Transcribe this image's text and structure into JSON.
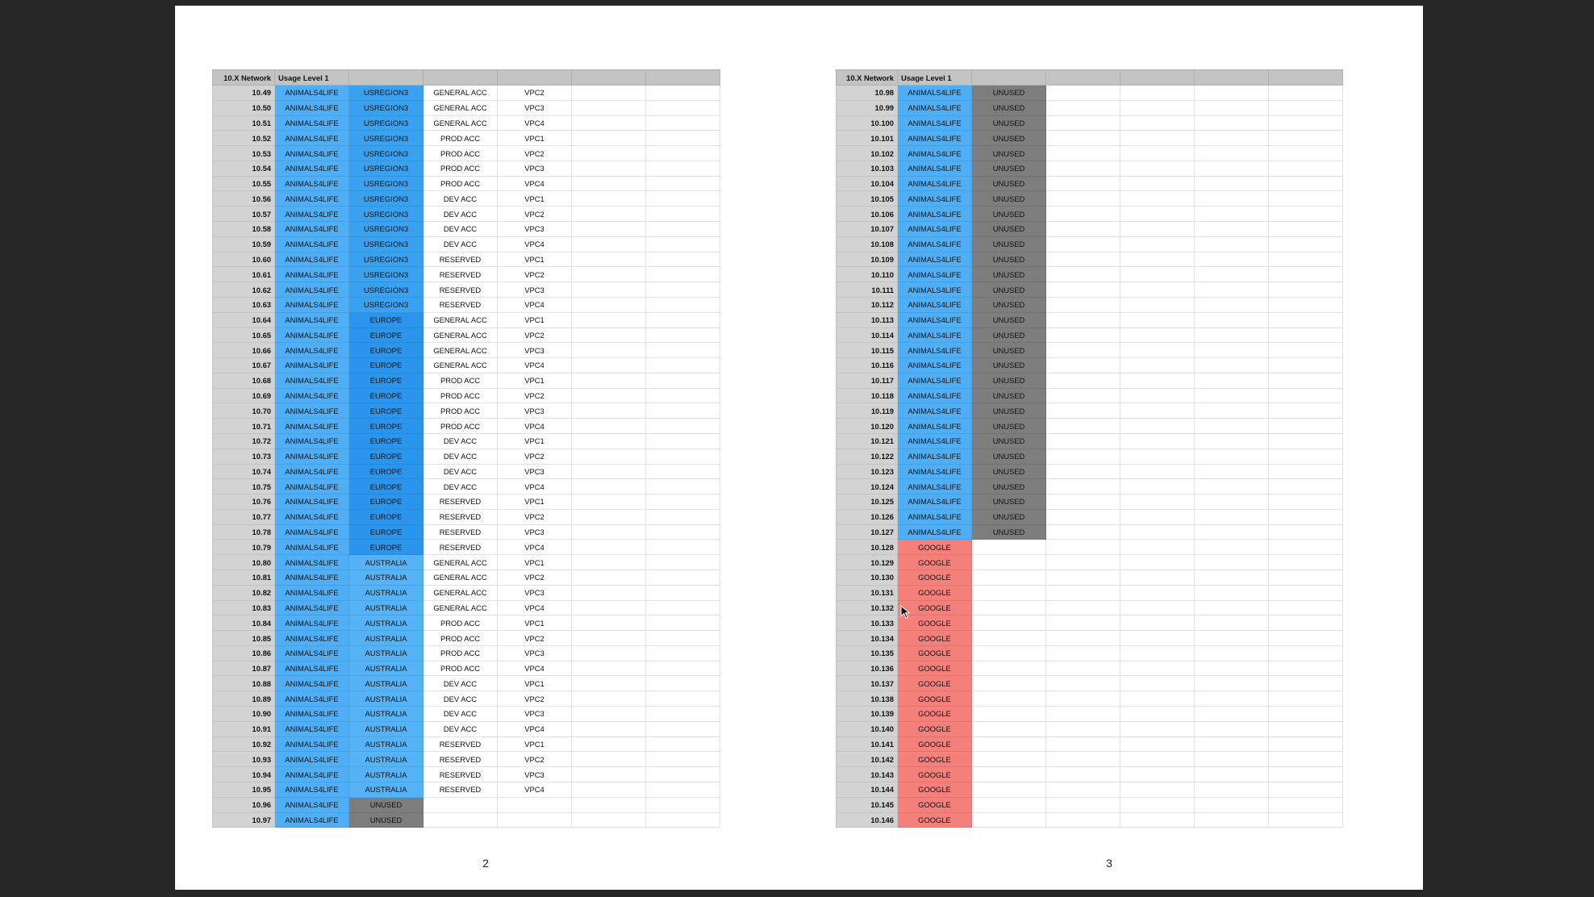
{
  "colors": {
    "animals4life": "#50aff4",
    "usregion3": "#3aa1ee",
    "europe": "#2b95ec",
    "australia": "#55b3f5",
    "unused": "#7d7d7d",
    "google": "#f3807b",
    "header": "#c3c3c3",
    "network_col": "#d2d2d2"
  },
  "headers": {
    "network": "10.X Network",
    "usage": "Usage Level 1"
  },
  "pages": [
    {
      "page_number": "2",
      "rows": [
        [
          "10.49",
          "ANIMALS4LIFE",
          "USREGION3",
          "GENERAL ACC",
          "VPC2"
        ],
        [
          "10.50",
          "ANIMALS4LIFE",
          "USREGION3",
          "GENERAL ACC",
          "VPC3"
        ],
        [
          "10.51",
          "ANIMALS4LIFE",
          "USREGION3",
          "GENERAL ACC",
          "VPC4"
        ],
        [
          "10.52",
          "ANIMALS4LIFE",
          "USREGION3",
          "PROD ACC",
          "VPC1"
        ],
        [
          "10.53",
          "ANIMALS4LIFE",
          "USREGION3",
          "PROD ACC",
          "VPC2"
        ],
        [
          "10.54",
          "ANIMALS4LIFE",
          "USREGION3",
          "PROD ACC",
          "VPC3"
        ],
        [
          "10.55",
          "ANIMALS4LIFE",
          "USREGION3",
          "PROD ACC",
          "VPC4"
        ],
        [
          "10.56",
          "ANIMALS4LIFE",
          "USREGION3",
          "DEV ACC",
          "VPC1"
        ],
        [
          "10.57",
          "ANIMALS4LIFE",
          "USREGION3",
          "DEV ACC",
          "VPC2"
        ],
        [
          "10.58",
          "ANIMALS4LIFE",
          "USREGION3",
          "DEV ACC",
          "VPC3"
        ],
        [
          "10.59",
          "ANIMALS4LIFE",
          "USREGION3",
          "DEV ACC",
          "VPC4"
        ],
        [
          "10.60",
          "ANIMALS4LIFE",
          "USREGION3",
          "RESERVED",
          "VPC1"
        ],
        [
          "10.61",
          "ANIMALS4LIFE",
          "USREGION3",
          "RESERVED",
          "VPC2"
        ],
        [
          "10.62",
          "ANIMALS4LIFE",
          "USREGION3",
          "RESERVED",
          "VPC3"
        ],
        [
          "10.63",
          "ANIMALS4LIFE",
          "USREGION3",
          "RESERVED",
          "VPC4"
        ],
        [
          "10.64",
          "ANIMALS4LIFE",
          "EUROPE",
          "GENERAL ACC",
          "VPC1"
        ],
        [
          "10.65",
          "ANIMALS4LIFE",
          "EUROPE",
          "GENERAL ACC",
          "VPC2"
        ],
        [
          "10.66",
          "ANIMALS4LIFE",
          "EUROPE",
          "GENERAL ACC",
          "VPC3"
        ],
        [
          "10.67",
          "ANIMALS4LIFE",
          "EUROPE",
          "GENERAL ACC",
          "VPC4"
        ],
        [
          "10.68",
          "ANIMALS4LIFE",
          "EUROPE",
          "PROD ACC",
          "VPC1"
        ],
        [
          "10.69",
          "ANIMALS4LIFE",
          "EUROPE",
          "PROD ACC",
          "VPC2"
        ],
        [
          "10.70",
          "ANIMALS4LIFE",
          "EUROPE",
          "PROD ACC",
          "VPC3"
        ],
        [
          "10.71",
          "ANIMALS4LIFE",
          "EUROPE",
          "PROD ACC",
          "VPC4"
        ],
        [
          "10.72",
          "ANIMALS4LIFE",
          "EUROPE",
          "DEV ACC",
          "VPC1"
        ],
        [
          "10.73",
          "ANIMALS4LIFE",
          "EUROPE",
          "DEV ACC",
          "VPC2"
        ],
        [
          "10.74",
          "ANIMALS4LIFE",
          "EUROPE",
          "DEV ACC",
          "VPC3"
        ],
        [
          "10.75",
          "ANIMALS4LIFE",
          "EUROPE",
          "DEV ACC",
          "VPC4"
        ],
        [
          "10.76",
          "ANIMALS4LIFE",
          "EUROPE",
          "RESERVED",
          "VPC1"
        ],
        [
          "10.77",
          "ANIMALS4LIFE",
          "EUROPE",
          "RESERVED",
          "VPC2"
        ],
        [
          "10.78",
          "ANIMALS4LIFE",
          "EUROPE",
          "RESERVED",
          "VPC3"
        ],
        [
          "10.79",
          "ANIMALS4LIFE",
          "EUROPE",
          "RESERVED",
          "VPC4"
        ],
        [
          "10.80",
          "ANIMALS4LIFE",
          "AUSTRALIA",
          "GENERAL ACC",
          "VPC1"
        ],
        [
          "10.81",
          "ANIMALS4LIFE",
          "AUSTRALIA",
          "GENERAL ACC",
          "VPC2"
        ],
        [
          "10.82",
          "ANIMALS4LIFE",
          "AUSTRALIA",
          "GENERAL ACC",
          "VPC3"
        ],
        [
          "10.83",
          "ANIMALS4LIFE",
          "AUSTRALIA",
          "GENERAL ACC",
          "VPC4"
        ],
        [
          "10.84",
          "ANIMALS4LIFE",
          "AUSTRALIA",
          "PROD ACC",
          "VPC1"
        ],
        [
          "10.85",
          "ANIMALS4LIFE",
          "AUSTRALIA",
          "PROD ACC",
          "VPC2"
        ],
        [
          "10.86",
          "ANIMALS4LIFE",
          "AUSTRALIA",
          "PROD ACC",
          "VPC3"
        ],
        [
          "10.87",
          "ANIMALS4LIFE",
          "AUSTRALIA",
          "PROD ACC",
          "VPC4"
        ],
        [
          "10.88",
          "ANIMALS4LIFE",
          "AUSTRALIA",
          "DEV ACC",
          "VPC1"
        ],
        [
          "10.89",
          "ANIMALS4LIFE",
          "AUSTRALIA",
          "DEV ACC",
          "VPC2"
        ],
        [
          "10.90",
          "ANIMALS4LIFE",
          "AUSTRALIA",
          "DEV ACC",
          "VPC3"
        ],
        [
          "10.91",
          "ANIMALS4LIFE",
          "AUSTRALIA",
          "DEV ACC",
          "VPC4"
        ],
        [
          "10.92",
          "ANIMALS4LIFE",
          "AUSTRALIA",
          "RESERVED",
          "VPC1"
        ],
        [
          "10.93",
          "ANIMALS4LIFE",
          "AUSTRALIA",
          "RESERVED",
          "VPC2"
        ],
        [
          "10.94",
          "ANIMALS4LIFE",
          "AUSTRALIA",
          "RESERVED",
          "VPC3"
        ],
        [
          "10.95",
          "ANIMALS4LIFE",
          "AUSTRALIA",
          "RESERVED",
          "VPC4"
        ],
        [
          "10.96",
          "ANIMALS4LIFE",
          "UNUSED",
          "",
          ""
        ],
        [
          "10.97",
          "ANIMALS4LIFE",
          "UNUSED",
          "",
          ""
        ]
      ]
    },
    {
      "page_number": "3",
      "rows": [
        [
          "10.98",
          "ANIMALS4LIFE",
          "UNUSED"
        ],
        [
          "10.99",
          "ANIMALS4LIFE",
          "UNUSED"
        ],
        [
          "10.100",
          "ANIMALS4LIFE",
          "UNUSED"
        ],
        [
          "10.101",
          "ANIMALS4LIFE",
          "UNUSED"
        ],
        [
          "10.102",
          "ANIMALS4LIFE",
          "UNUSED"
        ],
        [
          "10.103",
          "ANIMALS4LIFE",
          "UNUSED"
        ],
        [
          "10.104",
          "ANIMALS4LIFE",
          "UNUSED"
        ],
        [
          "10.105",
          "ANIMALS4LIFE",
          "UNUSED"
        ],
        [
          "10.106",
          "ANIMALS4LIFE",
          "UNUSED"
        ],
        [
          "10.107",
          "ANIMALS4LIFE",
          "UNUSED"
        ],
        [
          "10.108",
          "ANIMALS4LIFE",
          "UNUSED"
        ],
        [
          "10.109",
          "ANIMALS4LIFE",
          "UNUSED"
        ],
        [
          "10.110",
          "ANIMALS4LIFE",
          "UNUSED"
        ],
        [
          "10.111",
          "ANIMALS4LIFE",
          "UNUSED"
        ],
        [
          "10.112",
          "ANIMALS4LIFE",
          "UNUSED"
        ],
        [
          "10.113",
          "ANIMALS4LIFE",
          "UNUSED"
        ],
        [
          "10.114",
          "ANIMALS4LIFE",
          "UNUSED"
        ],
        [
          "10.115",
          "ANIMALS4LIFE",
          "UNUSED"
        ],
        [
          "10.116",
          "ANIMALS4LIFE",
          "UNUSED"
        ],
        [
          "10.117",
          "ANIMALS4LIFE",
          "UNUSED"
        ],
        [
          "10.118",
          "ANIMALS4LIFE",
          "UNUSED"
        ],
        [
          "10.119",
          "ANIMALS4LIFE",
          "UNUSED"
        ],
        [
          "10.120",
          "ANIMALS4LIFE",
          "UNUSED"
        ],
        [
          "10.121",
          "ANIMALS4LIFE",
          "UNUSED"
        ],
        [
          "10.122",
          "ANIMALS4LIFE",
          "UNUSED"
        ],
        [
          "10.123",
          "ANIMALS4LIFE",
          "UNUSED"
        ],
        [
          "10.124",
          "ANIMALS4LIFE",
          "UNUSED"
        ],
        [
          "10.125",
          "ANIMALS4LIFE",
          "UNUSED"
        ],
        [
          "10.126",
          "ANIMALS4LIFE",
          "UNUSED"
        ],
        [
          "10.127",
          "ANIMALS4LIFE",
          "UNUSED"
        ],
        [
          "10.128",
          "GOOGLE",
          ""
        ],
        [
          "10.129",
          "GOOGLE",
          ""
        ],
        [
          "10.130",
          "GOOGLE",
          ""
        ],
        [
          "10.131",
          "GOOGLE",
          ""
        ],
        [
          "10.132",
          "GOOGLE",
          ""
        ],
        [
          "10.133",
          "GOOGLE",
          ""
        ],
        [
          "10.134",
          "GOOGLE",
          ""
        ],
        [
          "10.135",
          "GOOGLE",
          ""
        ],
        [
          "10.136",
          "GOOGLE",
          ""
        ],
        [
          "10.137",
          "GOOGLE",
          ""
        ],
        [
          "10.138",
          "GOOGLE",
          ""
        ],
        [
          "10.139",
          "GOOGLE",
          ""
        ],
        [
          "10.140",
          "GOOGLE",
          ""
        ],
        [
          "10.141",
          "GOOGLE",
          ""
        ],
        [
          "10.142",
          "GOOGLE",
          ""
        ],
        [
          "10.143",
          "GOOGLE",
          ""
        ],
        [
          "10.144",
          "GOOGLE",
          ""
        ],
        [
          "10.145",
          "GOOGLE",
          ""
        ],
        [
          "10.146",
          "GOOGLE",
          ""
        ]
      ]
    }
  ]
}
